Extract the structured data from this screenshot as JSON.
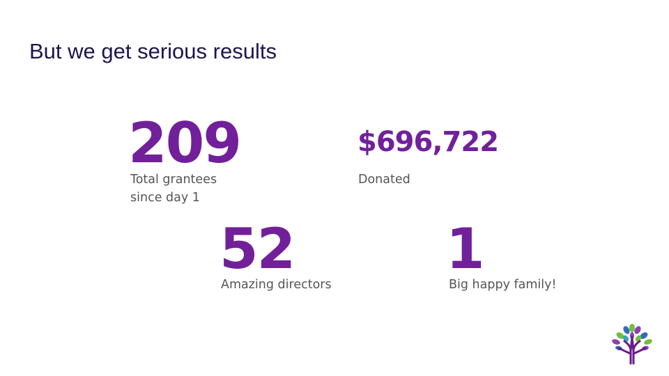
{
  "title": "But we get serious results",
  "stats": [
    {
      "value": "209",
      "label": "Total grantees since day 1"
    },
    {
      "value": "$696,722",
      "label": "Donated"
    },
    {
      "value": "52",
      "label": "Amazing directors"
    },
    {
      "value": "1",
      "label": "Big happy family!"
    }
  ]
}
